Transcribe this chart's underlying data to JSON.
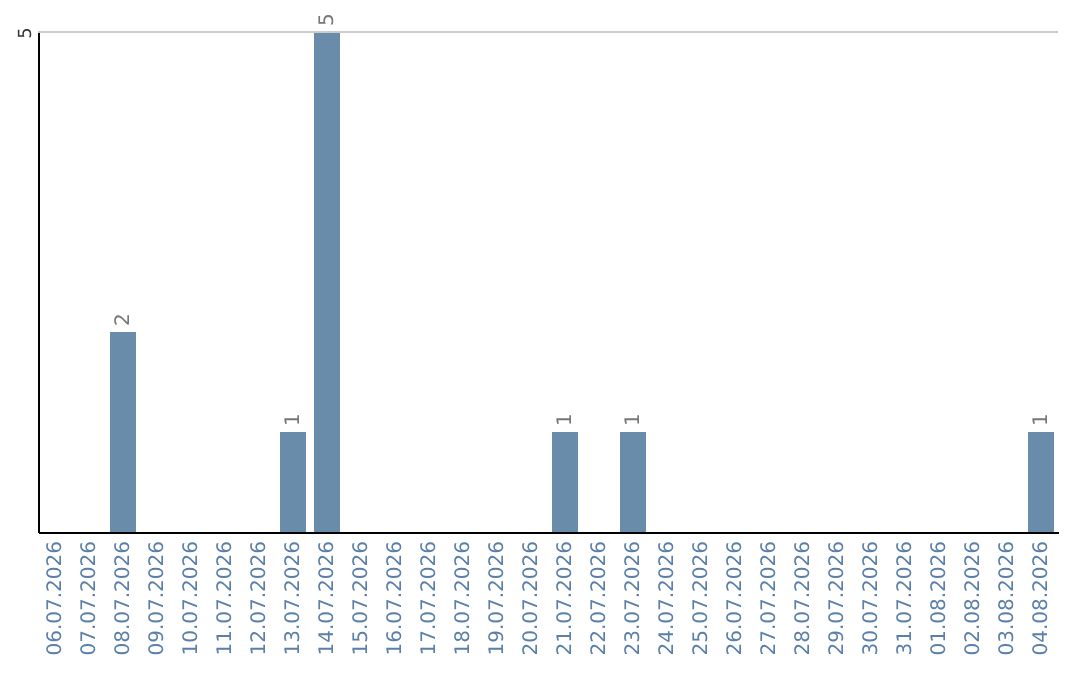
{
  "chart_data": {
    "type": "bar",
    "categories": [
      "06.07.2026",
      "07.07.2026",
      "08.07.2026",
      "09.07.2026",
      "10.07.2026",
      "11.07.2026",
      "12.07.2026",
      "13.07.2026",
      "14.07.2026",
      "15.07.2026",
      "16.07.2026",
      "17.07.2026",
      "18.07.2026",
      "19.07.2026",
      "20.07.2026",
      "21.07.2026",
      "22.07.2026",
      "23.07.2026",
      "24.07.2026",
      "25.07.2026",
      "26.07.2026",
      "27.07.2026",
      "28.07.2026",
      "29.07.2026",
      "30.07.2026",
      "31.07.2026",
      "01.08.2026",
      "02.08.2026",
      "03.08.2026",
      "04.08.2026"
    ],
    "values": [
      null,
      null,
      2,
      null,
      null,
      null,
      null,
      1,
      5,
      null,
      null,
      null,
      null,
      null,
      null,
      1,
      null,
      1,
      null,
      null,
      null,
      null,
      null,
      null,
      null,
      null,
      null,
      null,
      null,
      1
    ],
    "color": "#6a8cab",
    "ylim": [
      0,
      5
    ],
    "yticks": [
      5
    ],
    "ref_lines": [
      {
        "axis": "y",
        "value": 5,
        "color": "#cccccc"
      }
    ],
    "data_labels": true
  }
}
